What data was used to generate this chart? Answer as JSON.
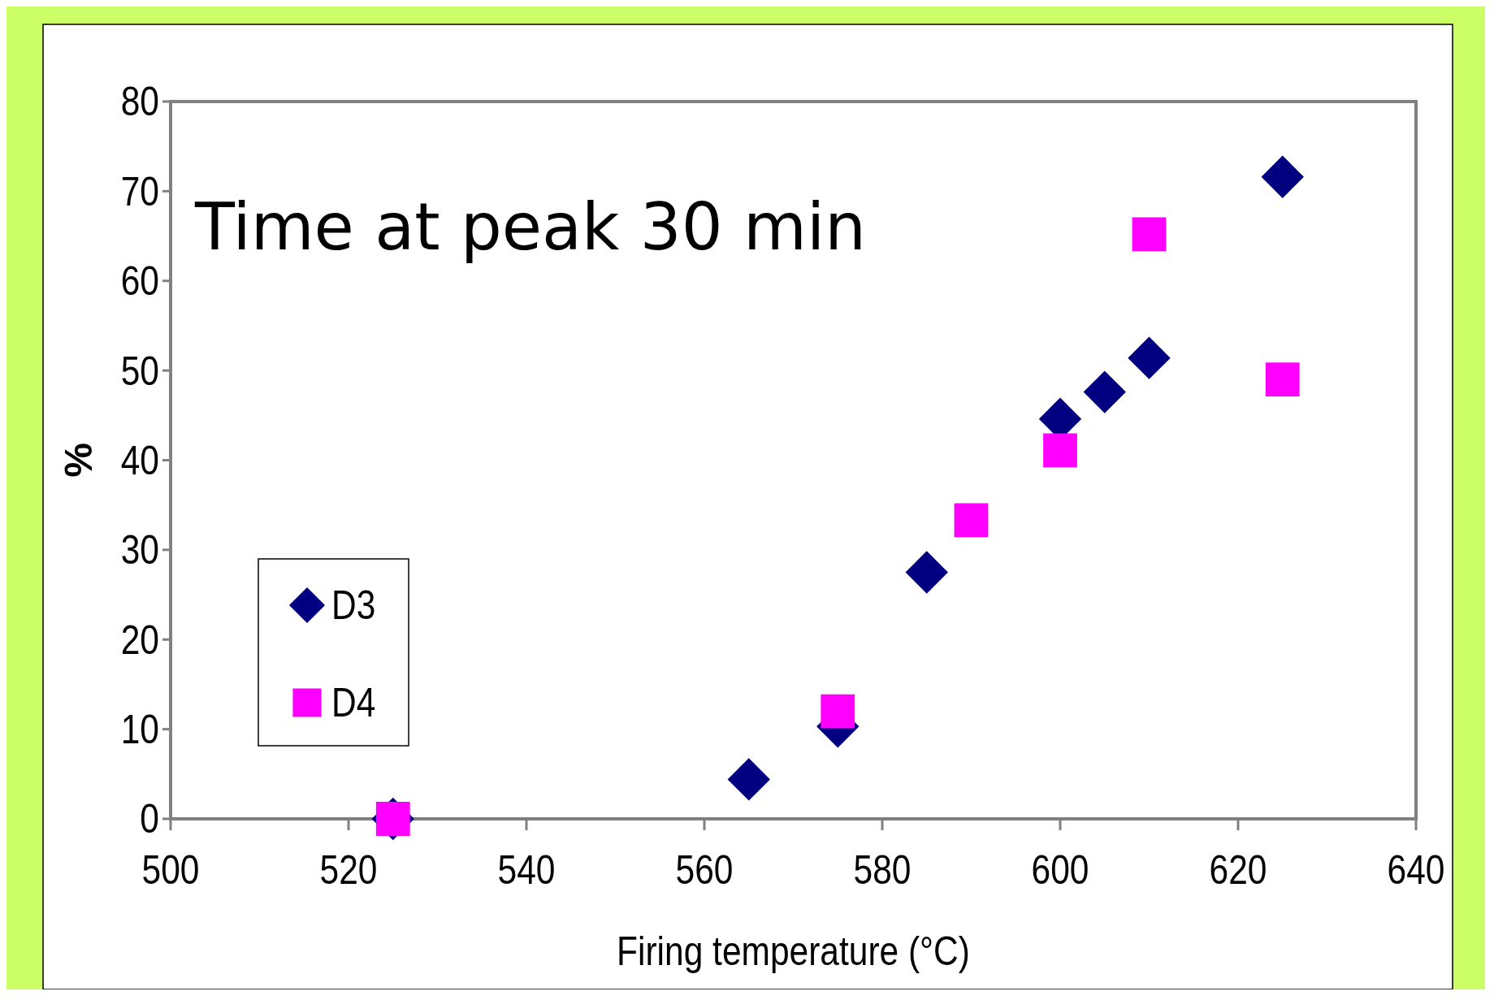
{
  "chart_data": {
    "type": "scatter",
    "title": "Time at peak 30 min",
    "xlabel": "Firing temperature (°C)",
    "ylabel": "%",
    "xlim": [
      500,
      640
    ],
    "xticks": [
      500,
      520,
      540,
      560,
      580,
      600,
      620,
      640
    ],
    "ylim": [
      0,
      80
    ],
    "yticks": [
      0,
      10,
      20,
      30,
      40,
      50,
      60,
      70,
      80
    ],
    "grid": false,
    "legend": "left",
    "series": [
      {
        "name": "D3",
        "color": "#000080",
        "marker": "diamond",
        "x": [
          525,
          565,
          575,
          585,
          600,
          605,
          610,
          625
        ],
        "values": [
          0,
          4.4,
          10.3,
          27.5,
          44.6,
          47.6,
          51.4,
          71.6
        ]
      },
      {
        "name": "D4",
        "color": "#ff00ff",
        "marker": "square",
        "x": [
          525,
          575,
          590,
          600,
          610,
          625
        ],
        "values": [
          0,
          12,
          33.3,
          41.1,
          65.2,
          49
        ]
      }
    ]
  }
}
